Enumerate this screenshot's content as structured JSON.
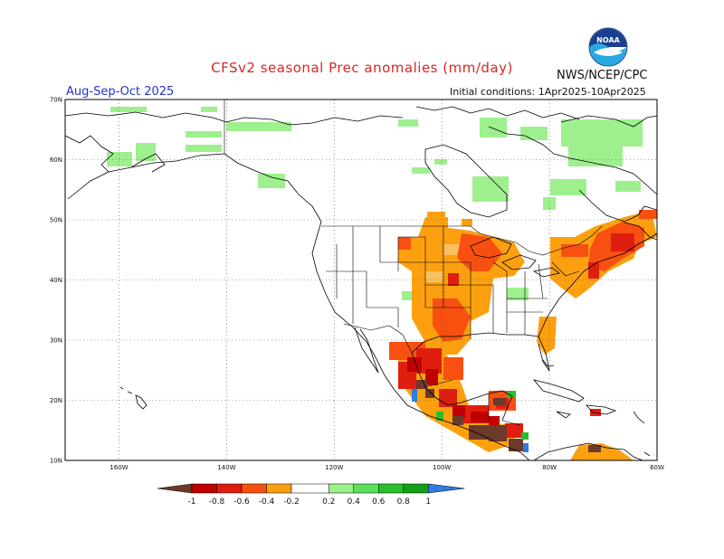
{
  "title": "CFSv2 seasonal Prec anomalies (mm/day)",
  "agency": "NWS/NCEP/CPC",
  "season": "Aug-Sep-Oct 2025",
  "initial_conditions": "Initial conditions: 1Apr2025-10Apr2025",
  "logo": {
    "text": "NOAA",
    "icon": "noaa-logo-icon"
  },
  "map": {
    "lat_labels": [
      "70N",
      "60N",
      "50N",
      "40N",
      "30N",
      "20N",
      "10N"
    ],
    "lon_labels": [
      "160W",
      "140W",
      "120W",
      "100W",
      "80W",
      "60W"
    ],
    "lat_values": [
      70,
      60,
      50,
      40,
      30,
      20,
      10
    ],
    "lon_values": [
      -160,
      -140,
      -120,
      -100,
      -80,
      -60
    ],
    "lon_range": [
      -170,
      -60
    ],
    "lat_range": [
      10,
      70
    ],
    "grid": "dotted"
  },
  "colorbar": {
    "tick_labels": [
      "-1",
      "-0.8",
      "-0.6",
      "-0.4",
      "-0.2",
      "0.2",
      "0.4",
      "0.6",
      "0.8",
      "1"
    ],
    "colors": [
      "#6b3a2a",
      "#c00000",
      "#e01e10",
      "#f85010",
      "#fca010",
      "#ffffff",
      "#9ef08e",
      "#5ce05a",
      "#28c028",
      "#14a014",
      "#2c7ee0"
    ]
  }
}
